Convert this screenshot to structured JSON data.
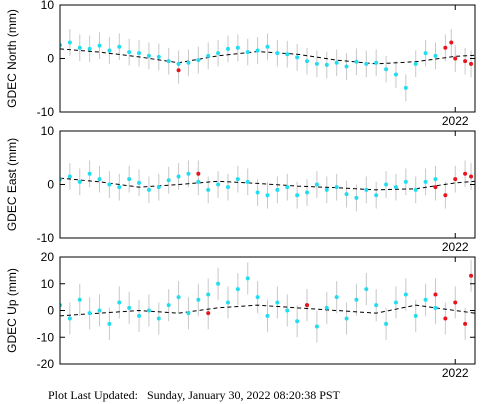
{
  "chart_data": [
    {
      "type": "scatter",
      "y_label": "GDEC North (mm)",
      "xlim": [
        2020.0,
        2022.1
      ],
      "xticks": [
        2022
      ],
      "ylim": [
        -10,
        10
      ],
      "yticks": [
        -10,
        0,
        10
      ],
      "series": [
        {
          "color": "#22dcf0",
          "error": 2.5,
          "x": [
            2020.0,
            2020.05,
            2020.1,
            2020.15,
            2020.2,
            2020.25,
            2020.3,
            2020.35,
            2020.4,
            2020.45,
            2020.5,
            2020.55,
            2020.6,
            2020.65,
            2020.7,
            2020.75,
            2020.8,
            2020.85,
            2020.9,
            2020.95,
            2021.0,
            2021.05,
            2021.1,
            2021.15,
            2021.2,
            2021.25,
            2021.3,
            2021.35,
            2021.4,
            2021.45,
            2021.5,
            2021.55,
            2021.6,
            2021.65,
            2021.7,
            2021.75,
            2021.8,
            2021.85,
            2021.9
          ],
          "values": [
            2.5,
            3,
            2,
            1.8,
            2.4,
            1.5,
            2.2,
            1.2,
            1,
            0.5,
            0.3,
            -0.5,
            -1,
            -0.8,
            -0.3,
            0.5,
            1,
            1.8,
            2,
            1.2,
            1.5,
            2.2,
            1,
            0.8,
            0.2,
            -0.5,
            -1,
            -1.2,
            -0.8,
            -1.5,
            -0.6,
            -1,
            -0.8,
            -2,
            -3,
            -5.5,
            -1,
            1,
            0.5
          ]
        },
        {
          "color": "#e8141e",
          "error": 2.5,
          "x": [
            2020.6,
            2021.95,
            2021.98,
            2022.0,
            2022.05,
            2022.08
          ],
          "values": [
            -2.2,
            2,
            3,
            0,
            -0.5,
            -1
          ]
        },
        {
          "color": "#000000",
          "dashed": true,
          "x": [
            2020.0,
            2020.2,
            2020.4,
            2020.6,
            2020.8,
            2021.0,
            2021.2,
            2021.4,
            2021.6,
            2021.8,
            2022.0,
            2022.1
          ],
          "values": [
            1.8,
            1.2,
            0.3,
            -0.8,
            0.5,
            1.3,
            0.8,
            -0.3,
            -1,
            -0.6,
            0.4,
            0.6
          ]
        }
      ]
    },
    {
      "type": "scatter",
      "y_label": "GDEC East (mm)",
      "xlim": [
        2020.0,
        2022.1
      ],
      "xticks": [
        2022
      ],
      "ylim": [
        -10,
        10
      ],
      "yticks": [
        -10,
        0,
        10
      ],
      "series": [
        {
          "color": "#22dcf0",
          "error": 2.5,
          "x": [
            2020.0,
            2020.05,
            2020.1,
            2020.15,
            2020.2,
            2020.25,
            2020.3,
            2020.35,
            2020.4,
            2020.45,
            2020.5,
            2020.55,
            2020.6,
            2020.65,
            2020.7,
            2020.75,
            2020.8,
            2020.85,
            2020.9,
            2020.95,
            2021.0,
            2021.05,
            2021.1,
            2021.15,
            2021.2,
            2021.25,
            2021.3,
            2021.35,
            2021.4,
            2021.45,
            2021.5,
            2021.55,
            2021.6,
            2021.65,
            2021.7,
            2021.75,
            2021.8,
            2021.85,
            2021.9
          ],
          "values": [
            1,
            1.5,
            0.5,
            2,
            1,
            0,
            -0.5,
            1,
            0.3,
            -1,
            -0.5,
            0.8,
            1.5,
            2,
            0.5,
            -1,
            0,
            -0.5,
            1,
            0.5,
            -1.5,
            -2,
            -1,
            -0.5,
            -2,
            -1.5,
            0,
            -1,
            -0.5,
            -1.8,
            -2.5,
            -1,
            -2,
            0,
            -0.5,
            0.5,
            -1,
            0.5,
            1
          ]
        },
        {
          "color": "#e8141e",
          "error": 2.5,
          "x": [
            2020.7,
            2021.9,
            2021.95,
            2022.0,
            2022.05,
            2022.08
          ],
          "values": [
            2,
            -0.5,
            -2,
            1,
            2,
            1.5
          ]
        },
        {
          "color": "#000000",
          "dashed": true,
          "x": [
            2020.0,
            2020.2,
            2020.4,
            2020.6,
            2020.8,
            2021.0,
            2021.2,
            2021.4,
            2021.6,
            2021.8,
            2022.0,
            2022.1
          ],
          "values": [
            1.2,
            0.5,
            -0.5,
            0,
            0.6,
            0.2,
            -0.3,
            -0.6,
            -1,
            -0.8,
            0.3,
            0.6
          ]
        }
      ]
    },
    {
      "type": "scatter",
      "y_label": "GDEC Up (mm)",
      "xlim": [
        2020.0,
        2022.1
      ],
      "xticks": [
        2022
      ],
      "ylim": [
        -20,
        20
      ],
      "yticks": [
        -20,
        -10,
        0,
        10,
        20
      ],
      "series": [
        {
          "color": "#22dcf0",
          "error": 6,
          "x": [
            2020.0,
            2020.05,
            2020.1,
            2020.15,
            2020.2,
            2020.25,
            2020.3,
            2020.35,
            2020.4,
            2020.45,
            2020.5,
            2020.55,
            2020.6,
            2020.65,
            2020.7,
            2020.75,
            2020.8,
            2020.85,
            2020.9,
            2020.95,
            2021.0,
            2021.05,
            2021.1,
            2021.15,
            2021.2,
            2021.25,
            2021.3,
            2021.35,
            2021.4,
            2021.45,
            2021.5,
            2021.55,
            2021.6,
            2021.65,
            2021.7,
            2021.75,
            2021.8,
            2021.85,
            2021.9
          ],
          "values": [
            2,
            -3,
            4,
            -1,
            0,
            -5,
            3,
            1,
            -2,
            0,
            -3,
            2,
            5,
            -1,
            4,
            6,
            10,
            3,
            8,
            12,
            5,
            -2,
            3,
            0,
            -4,
            2,
            -6,
            1,
            5,
            -3,
            4,
            8,
            2,
            -5,
            3,
            6,
            -2,
            4,
            1
          ]
        },
        {
          "color": "#e8141e",
          "error": 6,
          "x": [
            2020.75,
            2021.25,
            2021.9,
            2021.95,
            2022.0,
            2022.05,
            2022.08
          ],
          "values": [
            -1,
            2,
            6,
            -3,
            3,
            -5,
            13
          ]
        },
        {
          "color": "#000000",
          "dashed": true,
          "x": [
            2020.0,
            2020.2,
            2020.4,
            2020.6,
            2020.8,
            2021.0,
            2021.2,
            2021.4,
            2021.6,
            2021.8,
            2022.0,
            2022.1
          ],
          "values": [
            -2,
            -1,
            0,
            -1,
            1,
            2,
            1,
            0,
            -1,
            2,
            0,
            -1
          ]
        }
      ]
    }
  ],
  "footer": "Plot Last Updated:   Sunday, January 30, 2022 08:20:38 PST"
}
